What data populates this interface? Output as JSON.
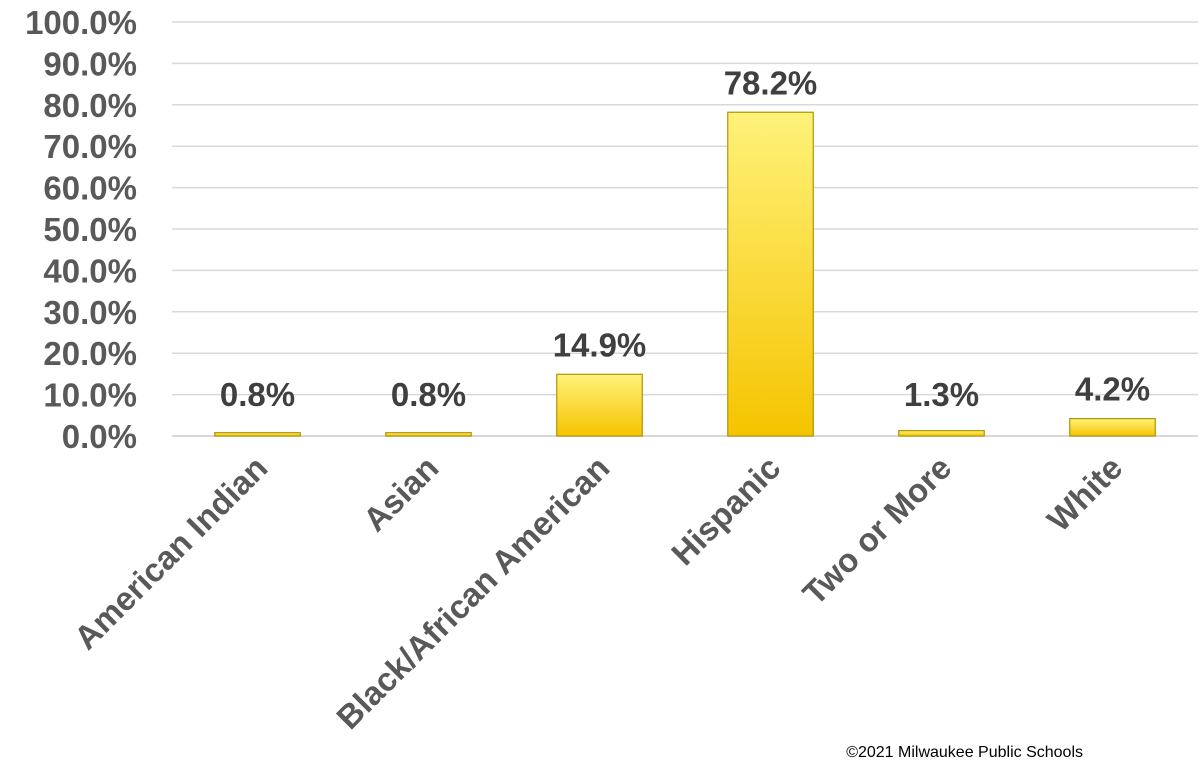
{
  "chart_data": {
    "type": "bar",
    "title": "",
    "xlabel": "",
    "ylabel": "",
    "categories": [
      "American Indian",
      "Asian",
      "Black/African American",
      "Hispanic",
      "Two or More",
      "White"
    ],
    "values": [
      0.8,
      0.8,
      14.9,
      78.2,
      1.3,
      4.2
    ],
    "data_labels": [
      "0.8%",
      "0.8%",
      "14.9%",
      "78.2%",
      "1.3%",
      "4.2%"
    ],
    "ylim": [
      0,
      100
    ],
    "yticks": [
      0,
      10,
      20,
      30,
      40,
      50,
      60,
      70,
      80,
      90,
      100
    ],
    "ytick_labels": [
      "0.0%",
      "10.0%",
      "20.0%",
      "30.0%",
      "40.0%",
      "50.0%",
      "60.0%",
      "70.0%",
      "80.0%",
      "90.0%",
      "100.0%"
    ],
    "grid": true,
    "legend": "none",
    "bar_color": "#ffe033",
    "bar_gradient": [
      "#fff27a",
      "#f5c400"
    ]
  },
  "footer": {
    "copyright": "©2021 Milwaukee Public Schools"
  }
}
